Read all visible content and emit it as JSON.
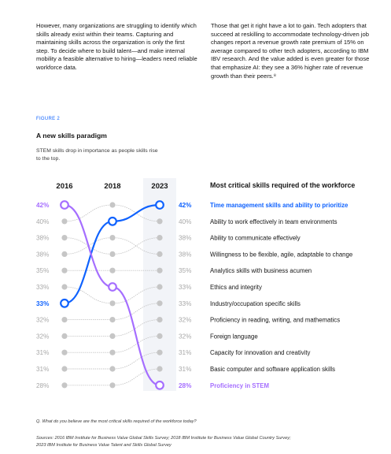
{
  "intro": {
    "left": "However, many organizations are struggling to identify which skills already exist within their teams. Capturing and maintaining skills across the organization is only the first step. To decide where to build talent—and make internal mobility a feasible alternative to hiring—leaders need reliable workforce data.",
    "right": "Those that get it right have a lot to gain. Tech adopters that succeed at reskilling to accommodate technology-driven job changes report a revenue growth rate premium of 15% on average compared to other tech adopters, according to IBM IBV research. And the value added is even greater for those that emphasize AI: they see a 36% higher rate of revenue growth than their peers.⁸"
  },
  "figure": {
    "label": "FIGURE 2",
    "title": "A new skills paradigm",
    "subtitle": "STEM skills drop in importance as people skills rise to the top.",
    "question": "Q. What do you believe are the most critical skills required of the workforce today?",
    "sources": "Sources: 2016 IBM Institute for Business Value Global Skills Survey; 2018 IBM Institute for Business Value Global Country Survey; 2023 IBM Institute for Business Value Talent and Skills Global Survey"
  },
  "chart_data": {
    "type": "line",
    "title": "Most critical skills required of the workforce",
    "years": [
      "2016",
      "2018",
      "2023"
    ],
    "ranks": 12,
    "value_labels_2016": [
      "42%",
      "40%",
      "38%",
      "38%",
      "35%",
      "33%",
      "33%",
      "32%",
      "32%",
      "31%",
      "31%",
      "28%"
    ],
    "value_labels_2023": [
      "42%",
      "40%",
      "38%",
      "38%",
      "35%",
      "33%",
      "33%",
      "32%",
      "32%",
      "31%",
      "31%",
      "28%"
    ],
    "skills_2023": [
      "Time management skills and ability to prioritize",
      "Ability to work effectively in team environments",
      "Ability to communicate effectively",
      "Willingness to be flexible, agile, adaptable to change",
      "Analytics skills with business acumen",
      "Ethics and integrity",
      "Industry/occupation specific skills",
      "Proficiency in reading, writing, and mathematics",
      "Foreign language",
      "Capacity for innovation and creativity",
      "Basic computer and software application skills",
      "Proficiency in STEM"
    ],
    "series": [
      {
        "name": "Time management skills and ability to prioritize",
        "ranks": [
          7,
          2,
          1
        ],
        "color": "#0f62fe",
        "highlight": true
      },
      {
        "name": "Proficiency in STEM",
        "ranks": [
          1,
          6,
          12
        ],
        "color": "#a56eff",
        "highlight": true
      },
      {
        "name": "Ability to work effectively in team environments",
        "ranks": [
          2,
          1,
          2
        ],
        "color": "#c6c6c6"
      },
      {
        "name": "Ability to communicate effectively",
        "ranks": [
          3,
          4,
          3
        ],
        "color": "#c6c6c6"
      },
      {
        "name": "Willingness to be flexible, agile, adaptable to change",
        "ranks": [
          4,
          3,
          4
        ],
        "color": "#c6c6c6"
      },
      {
        "name": "Analytics skills with business acumen",
        "ranks": [
          5,
          5,
          5
        ],
        "color": "#c6c6c6"
      },
      {
        "name": "Ethics and integrity",
        "ranks": [
          6,
          7,
          6
        ],
        "color": "#c6c6c6"
      },
      {
        "name": "Industry/occupation specific skills",
        "ranks": [
          8,
          8,
          7
        ],
        "color": "#c6c6c6"
      },
      {
        "name": "Proficiency in reading, writing, and mathematics",
        "ranks": [
          9,
          9,
          8
        ],
        "color": "#c6c6c6"
      },
      {
        "name": "Foreign language",
        "ranks": [
          10,
          10,
          9
        ],
        "color": "#c6c6c6"
      },
      {
        "name": "Capacity for innovation and creativity",
        "ranks": [
          11,
          11,
          10
        ],
        "color": "#c6c6c6"
      },
      {
        "name": "Basic computer and software application skills",
        "ranks": [
          12,
          12,
          11
        ],
        "color": "#c6c6c6"
      }
    ],
    "colors": {
      "highlight_blue": "#0f62fe",
      "highlight_purple": "#a56eff",
      "muted": "#c6c6c6",
      "muted_text": "#a8a8a8",
      "column_2023_bg": "#f2f4f8"
    }
  }
}
